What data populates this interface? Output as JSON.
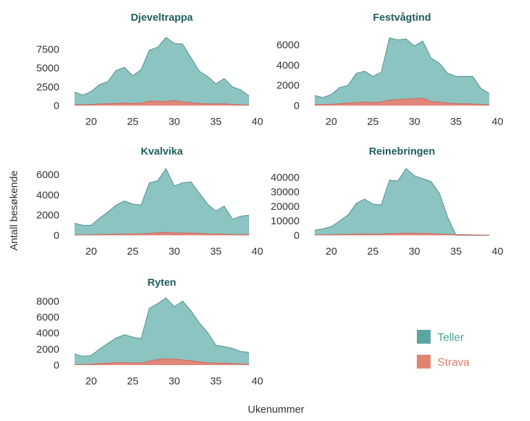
{
  "chart_data": {
    "type": "area",
    "xlabel": "Ukenummer",
    "ylabel": "Antall besøkende",
    "legend": {
      "placement": "bottom-right",
      "items": [
        {
          "name": "Teller",
          "color": "#5aa6a2",
          "text_color": "#4a9e99"
        },
        {
          "name": "Strava",
          "color": "#e08472",
          "text_color": "#e07a66"
        }
      ]
    },
    "colors": {
      "teller_fill": "#8cc4c1",
      "teller_line": "#4e8f8c",
      "strava_fill": "#e0877a",
      "strava_line": "#c96a5e"
    },
    "panels": [
      {
        "title": "Djeveltrappa",
        "x": [
          18,
          19,
          20,
          21,
          22,
          23,
          24,
          25,
          26,
          27,
          28,
          29,
          30,
          31,
          32,
          33,
          34,
          35,
          36,
          37,
          38,
          39
        ],
        "series": [
          {
            "name": "Teller",
            "values": [
              1800,
              1400,
              1900,
              2800,
              3200,
              4700,
              5100,
              4000,
              4800,
              7400,
              7800,
              9100,
              8300,
              8200,
              6400,
              4600,
              3900,
              2900,
              3600,
              2500,
              2100,
              1300
            ]
          },
          {
            "name": "Strava",
            "values": [
              100,
              100,
              150,
              200,
              250,
              300,
              350,
              300,
              350,
              600,
              600,
              550,
              700,
              500,
              400,
              300,
              250,
              200,
              250,
              150,
              100,
              50
            ]
          }
        ],
        "xlim": [
          17,
          40
        ],
        "ylim": [
          0,
          9300
        ],
        "xticks": [
          20,
          25,
          30,
          35,
          40
        ],
        "yticks": [
          0,
          2500,
          5000,
          7500
        ]
      },
      {
        "title": "Festvågtind",
        "x": [
          18,
          19,
          20,
          21,
          22,
          23,
          24,
          25,
          26,
          27,
          28,
          29,
          30,
          31,
          32,
          33,
          34,
          35,
          36,
          37,
          38,
          39
        ],
        "series": [
          {
            "name": "Teller",
            "values": [
              1000,
              800,
              1100,
              1800,
              2000,
              3200,
              3400,
              2900,
              3300,
              6700,
              6500,
              6600,
              5900,
              6400,
              4700,
              4200,
              3200,
              2900,
              2900,
              2900,
              1700,
              1200
            ]
          },
          {
            "name": "Strava",
            "values": [
              100,
              100,
              120,
              200,
              250,
              300,
              350,
              300,
              350,
              550,
              600,
              650,
              700,
              750,
              400,
              350,
              250,
              200,
              200,
              150,
              100,
              80
            ]
          }
        ],
        "xlim": [
          17,
          40
        ],
        "ylim": [
          0,
          6900
        ],
        "xticks": [
          20,
          25,
          30,
          35,
          40
        ],
        "yticks": [
          0,
          2000,
          4000,
          6000
        ]
      },
      {
        "title": "Kvalvika",
        "x": [
          18,
          19,
          20,
          21,
          22,
          23,
          24,
          25,
          26,
          27,
          28,
          29,
          30,
          31,
          32,
          33,
          34,
          35,
          36,
          37,
          38,
          39
        ],
        "series": [
          {
            "name": "Teller",
            "values": [
              1200,
              1000,
              1000,
              1700,
              2300,
              3000,
              3400,
              3100,
              3000,
              5200,
              5400,
              6600,
              4900,
              5200,
              5300,
              4200,
              3100,
              2400,
              2900,
              1600,
              1900,
              2000
            ]
          },
          {
            "name": "Strava",
            "values": [
              30,
              30,
              50,
              80,
              100,
              120,
              140,
              130,
              150,
              200,
              250,
              300,
              250,
              230,
              220,
              200,
              150,
              120,
              130,
              80,
              90,
              90
            ]
          }
        ],
        "xlim": [
          17,
          40
        ],
        "ylim": [
          0,
          6900
        ],
        "xticks": [
          20,
          25,
          30,
          35,
          40
        ],
        "yticks": [
          0,
          2000,
          4000,
          6000
        ]
      },
      {
        "title": "Reinebringen",
        "x": [
          18,
          19,
          20,
          21,
          22,
          23,
          24,
          25,
          26,
          27,
          28,
          29,
          30,
          31,
          32,
          33,
          34,
          35,
          36,
          37,
          38,
          39
        ],
        "series": [
          {
            "name": "Teller",
            "values": [
              3500,
              4500,
              6000,
              10000,
              14000,
              22000,
              25000,
              21500,
              21000,
              38000,
              37500,
              46000,
              41000,
              39000,
              37000,
              29000,
              12500,
              0,
              0,
              0,
              0,
              0
            ]
          },
          {
            "name": "Strava",
            "values": [
              300,
              400,
              500,
              600,
              700,
              800,
              900,
              800,
              900,
              1200,
              1300,
              1500,
              1400,
              1300,
              1200,
              900,
              700,
              600,
              500,
              400,
              300,
              200
            ]
          }
        ],
        "xlim": [
          17,
          40
        ],
        "ylim": [
          0,
          48000
        ],
        "xticks": [
          20,
          25,
          30,
          35,
          40
        ],
        "yticks": [
          0,
          10000,
          20000,
          30000,
          40000
        ]
      },
      {
        "title": "Ryten",
        "x": [
          18,
          19,
          20,
          21,
          22,
          23,
          24,
          25,
          26,
          27,
          28,
          29,
          30,
          31,
          32,
          33,
          34,
          35,
          36,
          37,
          38,
          39
        ],
        "series": [
          {
            "name": "Teller",
            "values": [
              1400,
              1100,
              1200,
              2000,
              2700,
              3400,
              3800,
              3500,
              3300,
              7100,
              7700,
              8400,
              7300,
              8000,
              6800,
              5300,
              4100,
              2500,
              2300,
              2100,
              1700,
              1600
            ]
          },
          {
            "name": "Strava",
            "values": [
              50,
              80,
              100,
              200,
              250,
              300,
              300,
              280,
              250,
              500,
              700,
              800,
              750,
              650,
              550,
              400,
              300,
              250,
              250,
              200,
              150,
              120
            ]
          }
        ],
        "xlim": [
          17,
          40
        ],
        "ylim": [
          0,
          8800
        ],
        "xticks": [
          20,
          25,
          30,
          35,
          40
        ],
        "yticks": [
          0,
          2000,
          4000,
          6000,
          8000
        ]
      }
    ]
  }
}
